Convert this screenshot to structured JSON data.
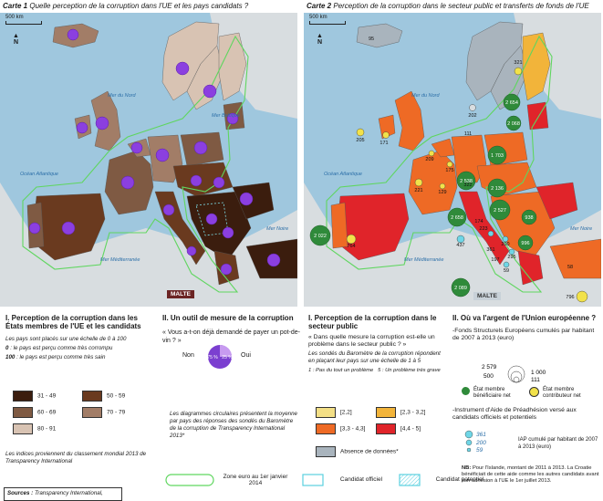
{
  "map1": {
    "title_num": "Carte 1",
    "title": "Quelle perception de la corruption dans l'UE et les pays candidats ?",
    "scale": "500 km",
    "north": "N",
    "malte": "MALTE",
    "seas": [
      "Mer du Nord",
      "Mer Baltique",
      "Océan Atlantique",
      "Mer Noire",
      "Mer Méditerranée"
    ]
  },
  "map2": {
    "title_num": "Carte 2",
    "title": "Perception de la corruption dans le secteur public et transferts de fonds de l'UE",
    "scale": "500 km",
    "north": "N",
    "malte": "MALTE",
    "seas": [
      "Mer du Nord",
      "Océan Atlantique",
      "Mer Noire",
      "Mer Méditerranée"
    ],
    "values": [
      "95",
      "321",
      "202",
      "205",
      "111",
      "171",
      "2 654",
      "2 068",
      "1 703",
      "209",
      "175",
      "2 538",
      "2 136",
      "221",
      "129",
      "322",
      "2 527",
      "223",
      "938",
      "174",
      "2 658",
      "2 022",
      "764",
      "361",
      "996",
      "200",
      "295",
      "59",
      "197",
      "437",
      "2 089",
      "796",
      "58"
    ]
  },
  "legend1": {
    "heading": "I. Perception de la corruption dans les États membres de l'UE et les candidats",
    "scale_note": "Les pays sont placés sur une échelle de 0 à 100",
    "zero_bold": "0",
    "zero_text": ": le pays est perçu comme très corrompu",
    "hundred_bold": "100",
    "hundred_text": ": le pays est perçu comme très sain",
    "classes": [
      {
        "label": "31 - 49",
        "color": "#3b1d0e"
      },
      {
        "label": "50 - 59",
        "color": "#6a3a1f"
      },
      {
        "label": "60 - 69",
        "color": "#7f5a43"
      },
      {
        "label": "70 - 79",
        "color": "#a27d67"
      },
      {
        "label": "80 - 91",
        "color": "#d8c3b3"
      }
    ],
    "source_note": "Les indices proviennent du classement mondial 2013 de Transparency International"
  },
  "legend2": {
    "heading": "II. Un outil de mesure de la corruption",
    "question": "« Vous a-t-on déjà demandé de payer un pot-de-vin ? »",
    "non": "Non",
    "oui": "Oui",
    "pct_non": "75 %",
    "pct_oui": "25 %",
    "oui_fraction": 0.25,
    "note": "Les diagrammes circulaires présentent la moyenne par pays des réponses des sondés du Baromètre de la corruption de Transparency International 2013*"
  },
  "legend3": {
    "heading": "I. Perception de la corruption dans le secteur public",
    "question": "« Dans quelle mesure la corruption est-elle un problème dans le secteur public ? »",
    "desc": "Les sondés du Baromètre de la corruption répondent en plaçant leur pays sur une échelle de 1 à 5",
    "scale_1": "1 : Pas du tout un problème",
    "scale_5": "5 : Un problème très grave",
    "classes": [
      {
        "label": "[2,2]",
        "color": "#f3df86"
      },
      {
        "label": "[2,3 - 3,2]",
        "color": "#f2b43a"
      },
      {
        "label": "[3,3 - 4,3]",
        "color": "#ee6a25"
      },
      {
        "label": "[4,4 - 5]",
        "color": "#e0242a"
      }
    ],
    "nodata": "Absence de données*",
    "nodata_color": "#a9b4bd"
  },
  "legend4": {
    "heading": "II. Où va l'argent de l'Union européenne ?",
    "fonds_title": "-Fonds Structurels Européens cumulés par habitant de 2007 à 2013 (euro)",
    "circle_vals": [
      "2 579",
      "500",
      "1 000",
      "111"
    ],
    "net_benef": "État membre bénéficiaire net",
    "net_contrib": "État membre contributeur net",
    "ipa_title": "-Instrument d'Aide de Préadhésion versé aux candidats officiels et potentiels",
    "ipa_vals": [
      "361",
      "200",
      "59"
    ],
    "ipa_note": "IAP cumulé par habitant de 2007 à 2013 (euro)",
    "nb_label": "NB:",
    "nb_text": "Pour l'Islande, montant de 2011 à 2013. La Croatie bénéficiait de cette aide comme les autres candidats avant son adhésion à l'UE le 1er juillet 2013."
  },
  "footer": {
    "zone_euro": "Zone euro au 1er janvier 2014",
    "candidat_officiel": "Candidat officiel",
    "candidat_potentiel": "Candidat potentiel",
    "sources_label": "Sources :",
    "sources_text": "Transparency International,"
  }
}
